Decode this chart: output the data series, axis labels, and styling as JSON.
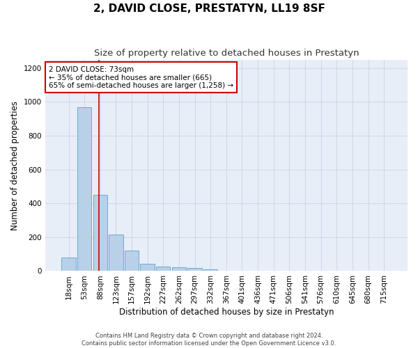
{
  "title": "2, DAVID CLOSE, PRESTATYN, LL19 8SF",
  "subtitle": "Size of property relative to detached houses in Prestatyn",
  "xlabel": "Distribution of detached houses by size in Prestatyn",
  "ylabel": "Number of detached properties",
  "footer_line1": "Contains HM Land Registry data © Crown copyright and database right 2024.",
  "footer_line2": "Contains public sector information licensed under the Open Government Licence v3.0.",
  "bar_labels": [
    "18sqm",
    "53sqm",
    "88sqm",
    "123sqm",
    "157sqm",
    "192sqm",
    "227sqm",
    "262sqm",
    "297sqm",
    "332sqm",
    "367sqm",
    "401sqm",
    "436sqm",
    "471sqm",
    "506sqm",
    "541sqm",
    "576sqm",
    "610sqm",
    "645sqm",
    "680sqm",
    "715sqm"
  ],
  "bar_values": [
    80,
    970,
    450,
    215,
    120,
    45,
    25,
    22,
    20,
    12,
    0,
    0,
    0,
    0,
    0,
    0,
    0,
    0,
    0,
    0,
    0
  ],
  "bar_color": "#b8d0e8",
  "bar_edge_color": "#6aaad4",
  "vline_x": 1.9,
  "annotation_text": "2 DAVID CLOSE: 73sqm\n← 35% of detached houses are smaller (665)\n65% of semi-detached houses are larger (1,258) →",
  "annotation_box_color": "#ffffff",
  "annotation_box_edge_color": "#cc0000",
  "vline_color": "#cc0000",
  "grid_color": "#d0d8e8",
  "background_color": "#e8eef8",
  "ylim": [
    0,
    1250
  ],
  "yticks": [
    0,
    200,
    400,
    600,
    800,
    1000,
    1200
  ],
  "title_fontsize": 11,
  "subtitle_fontsize": 9.5,
  "axis_label_fontsize": 8.5,
  "tick_fontsize": 7.5,
  "annotation_fontsize": 7.5,
  "footer_fontsize": 6
}
